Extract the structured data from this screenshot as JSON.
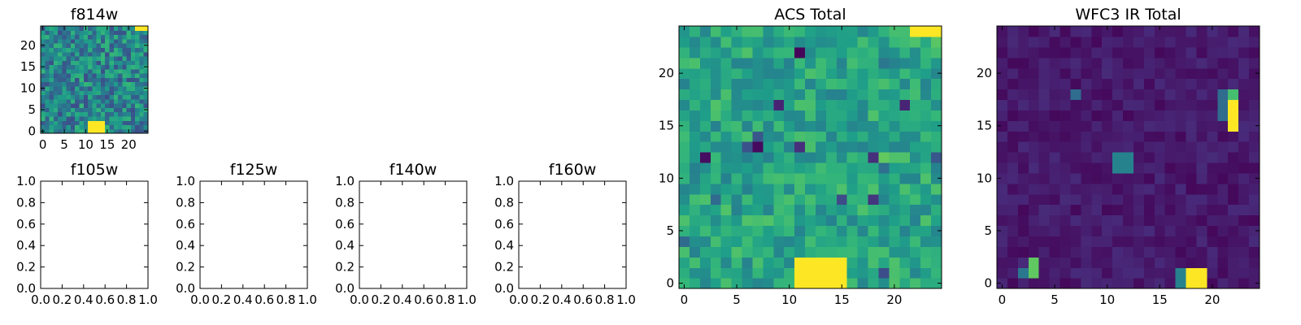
{
  "figure": {
    "background": "#ffffff"
  },
  "chart_data": [
    {
      "type": "heatmap",
      "title": "f814w",
      "grid": false,
      "colormap": "viridis",
      "xlim": [
        -0.5,
        24.5
      ],
      "ylim": [
        -0.5,
        24.5
      ],
      "xticks": [
        0,
        5,
        10,
        15,
        20
      ],
      "yticks": [
        0,
        5,
        10,
        15,
        20
      ],
      "xticklabels": [
        "0",
        "5",
        "10",
        "15",
        "20"
      ],
      "yticklabels": [
        "0",
        "5",
        "10",
        "15",
        "20"
      ],
      "grid_size": 25,
      "hot_regions": [
        {
          "x": [
            11,
            14
          ],
          "y": [
            0,
            2
          ],
          "value": 1.0
        },
        {
          "x": [
            22,
            24
          ],
          "y": [
            24,
            24
          ],
          "value": 1.0
        }
      ]
    },
    {
      "type": "heatmap",
      "title": "f105w",
      "grid": false,
      "xlim": [
        0.0,
        1.0
      ],
      "ylim": [
        0.0,
        1.0
      ],
      "xticks": [
        0,
        0.2,
        0.4,
        0.6,
        0.8,
        1.0
      ],
      "yticks": [
        0,
        0.2,
        0.4,
        0.6,
        0.8,
        1.0
      ],
      "xticklabels": [
        "0.0",
        "0.2",
        "0.4",
        "0.6",
        "0.8",
        "1.0"
      ],
      "yticklabels": [
        "0.0",
        "0.2",
        "0.4",
        "0.6",
        "0.8",
        "1.0"
      ]
    },
    {
      "type": "heatmap",
      "title": "f125w",
      "grid": false,
      "xlim": [
        0.0,
        1.0
      ],
      "ylim": [
        0.0,
        1.0
      ],
      "xticks": [
        0,
        0.2,
        0.4,
        0.6,
        0.8,
        1.0
      ],
      "yticks": [
        0,
        0.2,
        0.4,
        0.6,
        0.8,
        1.0
      ],
      "xticklabels": [
        "0.0",
        "0.2",
        "0.4",
        "0.6",
        "0.8",
        "1.0"
      ],
      "yticklabels": [
        "0.0",
        "0.2",
        "0.4",
        "0.6",
        "0.8",
        "1.0"
      ]
    },
    {
      "type": "heatmap",
      "title": "f140w",
      "grid": false,
      "xlim": [
        0.0,
        1.0
      ],
      "ylim": [
        0.0,
        1.0
      ],
      "xticks": [
        0,
        0.2,
        0.4,
        0.6,
        0.8,
        1.0
      ],
      "yticks": [
        0,
        0.2,
        0.4,
        0.6,
        0.8,
        1.0
      ],
      "xticklabels": [
        "0.0",
        "0.2",
        "0.4",
        "0.6",
        "0.8",
        "1.0"
      ],
      "yticklabels": [
        "0.0",
        "0.2",
        "0.4",
        "0.6",
        "0.8",
        "1.0"
      ]
    },
    {
      "type": "heatmap",
      "title": "f160w",
      "grid": false,
      "xlim": [
        0.0,
        1.0
      ],
      "ylim": [
        0.0,
        1.0
      ],
      "xticks": [
        0,
        0.2,
        0.4,
        0.6,
        0.8,
        1.0
      ],
      "yticks": [
        0,
        0.2,
        0.4,
        0.6,
        0.8,
        1.0
      ],
      "xticklabels": [
        "0.0",
        "0.2",
        "0.4",
        "0.6",
        "0.8",
        "1.0"
      ],
      "yticklabels": [
        "0.0",
        "0.2",
        "0.4",
        "0.6",
        "0.8",
        "1.0"
      ]
    },
    {
      "type": "heatmap",
      "title": "ACS Total",
      "grid": false,
      "colormap": "viridis",
      "xlim": [
        -0.5,
        24.5
      ],
      "ylim": [
        -0.5,
        24.5
      ],
      "xticks": [
        0,
        5,
        10,
        15,
        20
      ],
      "yticks": [
        0,
        5,
        10,
        15,
        20
      ],
      "xticklabels": [
        "0",
        "5",
        "10",
        "15",
        "20"
      ],
      "yticklabels": [
        "0",
        "5",
        "10",
        "15",
        "20"
      ],
      "grid_size": 25,
      "hot_regions": [
        {
          "x": [
            11,
            15
          ],
          "y": [
            0,
            2
          ],
          "value": 1.0
        },
        {
          "x": [
            22,
            24
          ],
          "y": [
            24,
            24
          ],
          "value": 1.0
        }
      ]
    },
    {
      "type": "heatmap",
      "title": "WFC3 IR Total",
      "grid": false,
      "colormap": "viridis",
      "xlim": [
        -0.5,
        24.5
      ],
      "ylim": [
        -0.5,
        24.5
      ],
      "xticks": [
        0,
        5,
        10,
        15,
        20
      ],
      "yticks": [
        0,
        5,
        10,
        15,
        20
      ],
      "xticklabels": [
        "0",
        "5",
        "10",
        "15",
        "20"
      ],
      "yticklabels": [
        "0",
        "5",
        "10",
        "15",
        "20"
      ],
      "grid_size": 25,
      "hot_regions": [
        {
          "x": [
            18,
            19
          ],
          "y": [
            0,
            1
          ],
          "value": 1.0
        },
        {
          "x": [
            17,
            17
          ],
          "y": [
            0,
            1
          ],
          "value": 0.45
        },
        {
          "x": [
            3,
            3
          ],
          "y": [
            1,
            2
          ],
          "value": 0.75
        },
        {
          "x": [
            2,
            2
          ],
          "y": [
            1,
            1
          ],
          "value": 0.4
        },
        {
          "x": [
            22,
            22
          ],
          "y": [
            15,
            17
          ],
          "value": 1.0
        },
        {
          "x": [
            22,
            22
          ],
          "y": [
            18,
            18
          ],
          "value": 0.7
        },
        {
          "x": [
            21,
            21
          ],
          "y": [
            16,
            18
          ],
          "value": 0.35
        },
        {
          "x": [
            11,
            12
          ],
          "y": [
            11,
            12
          ],
          "value": 0.45
        },
        {
          "x": [
            7,
            7
          ],
          "y": [
            18,
            18
          ],
          "value": 0.35
        }
      ]
    }
  ]
}
